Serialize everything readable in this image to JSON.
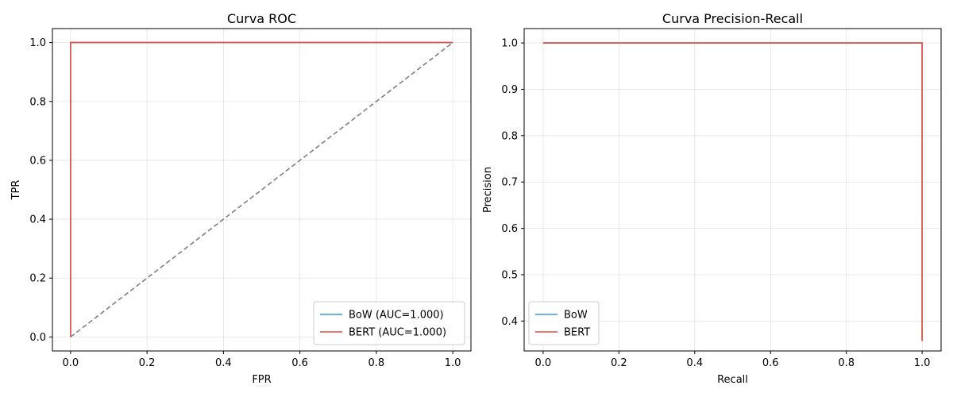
{
  "chart_data": [
    {
      "type": "line",
      "title": "Curva ROC",
      "xlabel": "FPR",
      "ylabel": "TPR",
      "xlim": [
        -0.0475,
        1.0475
      ],
      "ylim": [
        -0.0475,
        1.0475
      ],
      "xticks": [
        0.0,
        0.2,
        0.4,
        0.6,
        0.8,
        1.0
      ],
      "xtick_labels": [
        "0.0",
        "0.2",
        "0.4",
        "0.6",
        "0.8",
        "1.0"
      ],
      "yticks": [
        0.0,
        0.2,
        0.4,
        0.6,
        0.8,
        1.0
      ],
      "ytick_labels": [
        "0.0",
        "0.2",
        "0.4",
        "0.6",
        "0.8",
        "1.0"
      ],
      "grid": true,
      "legend_position": "lower right",
      "series": [
        {
          "name": "BoW (AUC=1.000)",
          "color": "#3a9bd6",
          "dash": "solid",
          "x": [
            0,
            0,
            1
          ],
          "y": [
            0,
            1,
            1
          ]
        },
        {
          "name": "BERT (AUC=1.000)",
          "color": "#e74c3c",
          "dash": "solid",
          "x": [
            0,
            0,
            1
          ],
          "y": [
            0,
            1,
            1
          ]
        }
      ],
      "reference_line": {
        "color": "#808080",
        "dash": "dashed",
        "x": [
          0,
          1
        ],
        "y": [
          0,
          1
        ]
      }
    },
    {
      "type": "line",
      "title": "Curva Precision-Recall",
      "xlabel": "Recall",
      "ylabel": "Precision",
      "xlim": [
        -0.05,
        1.05
      ],
      "ylim": [
        0.3355,
        1.031
      ],
      "xticks": [
        0.0,
        0.2,
        0.4,
        0.6,
        0.8,
        1.0
      ],
      "xtick_labels": [
        "0.0",
        "0.2",
        "0.4",
        "0.6",
        "0.8",
        "1.0"
      ],
      "yticks": [
        0.4,
        0.5,
        0.6,
        0.7,
        0.8,
        0.9,
        1.0
      ],
      "ytick_labels": [
        "0.4",
        "0.5",
        "0.6",
        "0.7",
        "0.8",
        "0.9",
        "1.0"
      ],
      "grid": true,
      "legend_position": "lower left",
      "series": [
        {
          "name": "BoW",
          "color": "#3a9bd6",
          "dash": "solid",
          "x": [
            0,
            1,
            1
          ],
          "y": [
            1.0,
            1.0,
            0.357
          ]
        },
        {
          "name": "BERT",
          "color": "#e74c3c",
          "dash": "solid",
          "x": [
            0,
            1,
            1
          ],
          "y": [
            1.0,
            1.0,
            0.357
          ]
        }
      ]
    }
  ]
}
